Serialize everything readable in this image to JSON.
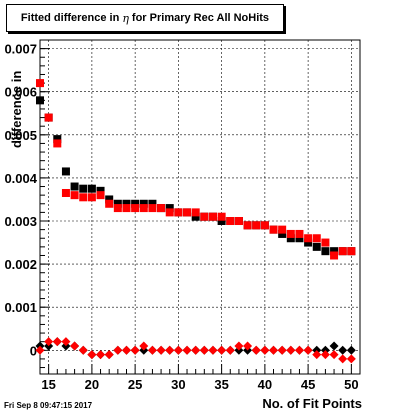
{
  "chart_data": {
    "type": "scatter",
    "title_parts": [
      "Fitted difference in",
      "η",
      "for Primary Rec All NoHits"
    ],
    "xlabel": "No. of Fit Points",
    "ylabel": "difference in",
    "xlim": [
      14,
      51
    ],
    "ylim": [
      -0.00055,
      0.0072
    ],
    "x_ticks": [
      15,
      20,
      25,
      30,
      35,
      40,
      45,
      50
    ],
    "y_ticks": [
      0,
      0.001,
      0.002,
      0.003,
      0.004,
      0.005,
      0.006,
      0.007
    ],
    "y_tick_labels": [
      "0",
      "0.001",
      "0.002",
      "0.003",
      "0.004",
      "0.005",
      "0.006",
      "0.007"
    ],
    "grid": true,
    "series": [
      {
        "marker": "square",
        "color": "#000000",
        "x": [
          14,
          15,
          16,
          17,
          18,
          19,
          20,
          21,
          22,
          23,
          24,
          25,
          26,
          27,
          28,
          29,
          30,
          31,
          32,
          33,
          34,
          35,
          36,
          37,
          38,
          39,
          40,
          41,
          42,
          43,
          44,
          45,
          46,
          47,
          48,
          49,
          50
        ],
        "values": [
          0.0058,
          0.0054,
          0.0049,
          0.00415,
          0.0038,
          0.00375,
          0.00375,
          0.0037,
          0.0035,
          0.0034,
          0.0034,
          0.0034,
          0.0034,
          0.0034,
          0.0033,
          0.0033,
          0.0032,
          0.0032,
          0.0031,
          0.0031,
          0.0031,
          0.003,
          0.003,
          0.003,
          0.0029,
          0.0029,
          0.0029,
          0.0028,
          0.0027,
          0.0026,
          0.0026,
          0.0025,
          0.0024,
          0.0023,
          0.0023,
          0.0023,
          0.0023
        ]
      },
      {
        "marker": "square",
        "color": "#ff0000",
        "x": [
          14,
          15,
          16,
          17,
          18,
          19,
          20,
          21,
          22,
          23,
          24,
          25,
          26,
          27,
          28,
          29,
          30,
          31,
          32,
          33,
          34,
          35,
          36,
          37,
          38,
          39,
          40,
          41,
          42,
          43,
          44,
          45,
          46,
          47,
          48,
          49,
          50
        ],
        "values": [
          0.0062,
          0.0054,
          0.0048,
          0.00365,
          0.0036,
          0.00355,
          0.00355,
          0.0036,
          0.0034,
          0.0033,
          0.0033,
          0.0033,
          0.0033,
          0.0033,
          0.0033,
          0.0032,
          0.0032,
          0.0032,
          0.0032,
          0.0031,
          0.0031,
          0.0031,
          0.003,
          0.003,
          0.0029,
          0.0029,
          0.0029,
          0.0028,
          0.0028,
          0.0027,
          0.0027,
          0.0026,
          0.0026,
          0.0025,
          0.0022,
          0.0023,
          0.0023
        ]
      },
      {
        "marker": "diamond",
        "color": "#000000",
        "x": [
          14,
          15,
          16,
          17,
          18,
          19,
          20,
          21,
          22,
          23,
          24,
          25,
          26,
          27,
          28,
          29,
          30,
          31,
          32,
          33,
          34,
          35,
          36,
          37,
          38,
          39,
          40,
          41,
          42,
          43,
          44,
          45,
          46,
          47,
          48,
          49,
          50
        ],
        "values": [
          0.0001,
          0.0001,
          0.0002,
          0.0001,
          0.0001,
          0.0,
          -0.0001,
          -0.0001,
          -0.0001,
          0.0,
          0.0,
          0.0,
          0.0,
          0.0,
          0.0,
          0.0,
          0.0,
          0.0,
          0.0,
          0.0,
          0.0,
          0.0,
          0.0,
          0.0,
          0.0,
          0.0,
          0.0,
          0.0,
          0.0,
          0.0,
          0.0,
          0.0,
          0.0,
          0.0,
          0.0001,
          0.0,
          0.0
        ]
      },
      {
        "marker": "diamond",
        "color": "#ff0000",
        "x": [
          14,
          15,
          16,
          17,
          18,
          19,
          20,
          21,
          22,
          23,
          24,
          25,
          26,
          27,
          28,
          29,
          30,
          31,
          32,
          33,
          34,
          35,
          36,
          37,
          38,
          39,
          40,
          41,
          42,
          43,
          44,
          45,
          46,
          47,
          48,
          49,
          50
        ],
        "values": [
          0.0,
          0.0002,
          0.0002,
          0.0002,
          0.0001,
          0.0,
          -0.0001,
          -0.0001,
          -0.0001,
          0.0,
          0.0,
          0.0,
          0.0001,
          0.0,
          0.0,
          0.0,
          0.0,
          0.0,
          0.0,
          0.0,
          0.0,
          0.0,
          0.0,
          0.0001,
          0.0001,
          0.0,
          0.0,
          0.0,
          0.0,
          0.0,
          0.0,
          0.0,
          -0.0001,
          -0.0001,
          -0.0001,
          -0.0002,
          -0.0002
        ]
      }
    ]
  },
  "datestamp": "Fri Sep  8 09:47:15 2017"
}
